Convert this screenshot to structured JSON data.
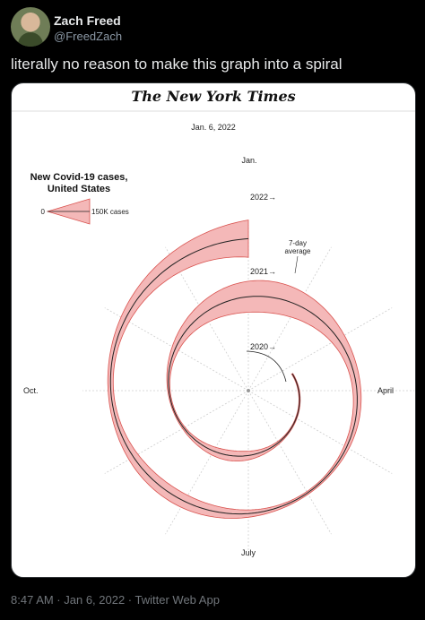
{
  "tweet": {
    "display_name": "Zach Freed",
    "handle": "@FreedZach",
    "text": "literally no reason to make this graph into a spiral",
    "timestamp": "8:47 AM · Jan 6, 2022 · Twitter Web App"
  },
  "chart_data": {
    "type": "spiral",
    "publisher": "The New York Times",
    "date": "Jan. 6, 2022",
    "title_line1": "New Covid-19 cases,",
    "title_line2": "United States",
    "legend_zero": "0",
    "legend_max": "150K cases",
    "avg_label_line1": "7-day",
    "avg_label_line2": "average",
    "months": [
      "Jan.",
      "April",
      "July",
      "Oct."
    ],
    "year_labels": [
      "2020→",
      "2021→",
      "2022→"
    ],
    "colors": {
      "band": "#f4b8b8",
      "band_edge": "#d9534f",
      "line": "#222222"
    }
  }
}
